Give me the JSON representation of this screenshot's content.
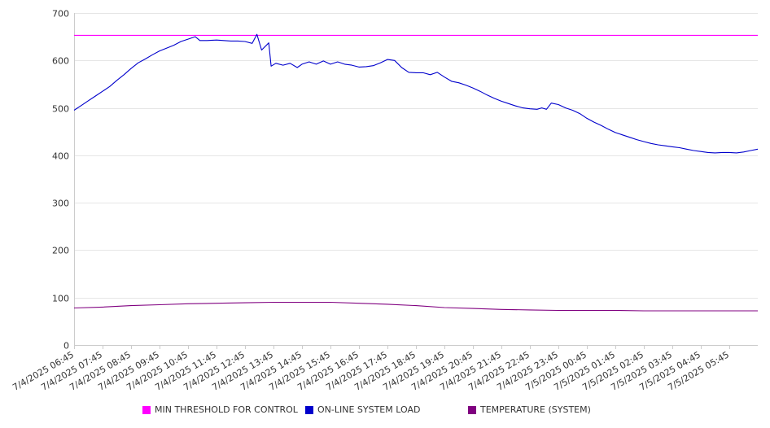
{
  "chart_data": {
    "type": "line",
    "ylim": [
      0,
      700
    ],
    "yticks": [
      0,
      100,
      200,
      300,
      400,
      500,
      600,
      700
    ],
    "grid": true,
    "legend_position": "bottom",
    "x_labels": [
      "7/4/2025 06:45",
      "7/4/2025 07:45",
      "7/4/2025 08:45",
      "7/4/2025 09:45",
      "7/4/2025 10:45",
      "7/4/2025 11:45",
      "7/4/2025 12:45",
      "7/4/2025 13:45",
      "7/4/2025 14:45",
      "7/4/2025 15:45",
      "7/4/2025 16:45",
      "7/4/2025 17:45",
      "7/4/2025 18:45",
      "7/4/2025 19:45",
      "7/4/2025 20:45",
      "7/4/2025 21:45",
      "7/4/2025 22:45",
      "7/4/2025 23:45",
      "7/5/2025 00:45",
      "7/5/2025 01:45",
      "7/5/2025 02:45",
      "7/5/2025 03:45",
      "7/5/2025 04:45",
      "7/5/2025 05:45"
    ],
    "x_time_range": [
      "7/4/2025 06:45",
      "7/5/2025 06:45"
    ],
    "series": [
      {
        "name": "MIN THRESHOLD FOR CONTROL",
        "color": "#ff00ff",
        "points": [
          [
            "7/4/2025 06:45",
            653
          ],
          [
            "7/5/2025 06:45",
            653
          ]
        ]
      },
      {
        "name": "ON-LINE SYSTEM LOAD",
        "color": "#0000cc",
        "points": [
          [
            "7/4/2025 06:45",
            495
          ],
          [
            "7/4/2025 07:00",
            505
          ],
          [
            "7/4/2025 07:15",
            515
          ],
          [
            "7/4/2025 07:30",
            525
          ],
          [
            "7/4/2025 07:45",
            535
          ],
          [
            "7/4/2025 08:00",
            545
          ],
          [
            "7/4/2025 08:15",
            558
          ],
          [
            "7/4/2025 08:30",
            570
          ],
          [
            "7/4/2025 08:45",
            583
          ],
          [
            "7/4/2025 09:00",
            595
          ],
          [
            "7/4/2025 09:15",
            603
          ],
          [
            "7/4/2025 09:30",
            612
          ],
          [
            "7/4/2025 09:45",
            620
          ],
          [
            "7/4/2025 10:00",
            626
          ],
          [
            "7/4/2025 10:15",
            632
          ],
          [
            "7/4/2025 10:30",
            640
          ],
          [
            "7/4/2025 10:45",
            645
          ],
          [
            "7/4/2025 11:00",
            650
          ],
          [
            "7/4/2025 11:10",
            642
          ],
          [
            "7/4/2025 11:25",
            642
          ],
          [
            "7/4/2025 11:45",
            643
          ],
          [
            "7/4/2025 12:00",
            642
          ],
          [
            "7/4/2025 12:15",
            641
          ],
          [
            "7/4/2025 12:30",
            641
          ],
          [
            "7/4/2025 12:45",
            640
          ],
          [
            "7/4/2025 13:00",
            636
          ],
          [
            "7/4/2025 13:10",
            655
          ],
          [
            "7/4/2025 13:20",
            622
          ],
          [
            "7/4/2025 13:35",
            637
          ],
          [
            "7/4/2025 13:40",
            588
          ],
          [
            "7/4/2025 13:50",
            594
          ],
          [
            "7/4/2025 14:05",
            590
          ],
          [
            "7/4/2025 14:20",
            594
          ],
          [
            "7/4/2025 14:35",
            585
          ],
          [
            "7/4/2025 14:45",
            592
          ],
          [
            "7/4/2025 15:00",
            597
          ],
          [
            "7/4/2025 15:15",
            592
          ],
          [
            "7/4/2025 15:30",
            599
          ],
          [
            "7/4/2025 15:45",
            592
          ],
          [
            "7/4/2025 16:00",
            597
          ],
          [
            "7/4/2025 16:15",
            592
          ],
          [
            "7/4/2025 16:30",
            590
          ],
          [
            "7/4/2025 16:45",
            586
          ],
          [
            "7/4/2025 17:00",
            587
          ],
          [
            "7/4/2025 17:15",
            589
          ],
          [
            "7/4/2025 17:30",
            595
          ],
          [
            "7/4/2025 17:45",
            602
          ],
          [
            "7/4/2025 18:00",
            600
          ],
          [
            "7/4/2025 18:15",
            585
          ],
          [
            "7/4/2025 18:30",
            575
          ],
          [
            "7/4/2025 18:45",
            574
          ],
          [
            "7/4/2025 19:00",
            574
          ],
          [
            "7/4/2025 19:15",
            570
          ],
          [
            "7/4/2025 19:30",
            575
          ],
          [
            "7/4/2025 19:45",
            565
          ],
          [
            "7/4/2025 20:00",
            556
          ],
          [
            "7/4/2025 20:15",
            553
          ],
          [
            "7/4/2025 20:30",
            548
          ],
          [
            "7/4/2025 20:45",
            542
          ],
          [
            "7/4/2025 21:00",
            535
          ],
          [
            "7/4/2025 21:15",
            527
          ],
          [
            "7/4/2025 21:30",
            520
          ],
          [
            "7/4/2025 21:45",
            514
          ],
          [
            "7/4/2025 22:00",
            509
          ],
          [
            "7/4/2025 22:15",
            504
          ],
          [
            "7/4/2025 22:30",
            500
          ],
          [
            "7/4/2025 22:45",
            498
          ],
          [
            "7/4/2025 23:00",
            497
          ],
          [
            "7/4/2025 23:10",
            500
          ],
          [
            "7/4/2025 23:20",
            497
          ],
          [
            "7/4/2025 23:30",
            510
          ],
          [
            "7/4/2025 23:45",
            507
          ],
          [
            "7/5/2025 00:00",
            500
          ],
          [
            "7/5/2025 00:15",
            495
          ],
          [
            "7/5/2025 00:30",
            488
          ],
          [
            "7/5/2025 00:45",
            478
          ],
          [
            "7/5/2025 01:00",
            470
          ],
          [
            "7/5/2025 01:15",
            463
          ],
          [
            "7/5/2025 01:30",
            455
          ],
          [
            "7/5/2025 01:45",
            448
          ],
          [
            "7/5/2025 02:00",
            443
          ],
          [
            "7/5/2025 02:15",
            438
          ],
          [
            "7/5/2025 02:30",
            433
          ],
          [
            "7/5/2025 02:45",
            429
          ],
          [
            "7/5/2025 03:00",
            425
          ],
          [
            "7/5/2025 03:15",
            422
          ],
          [
            "7/5/2025 03:30",
            420
          ],
          [
            "7/5/2025 03:45",
            418
          ],
          [
            "7/5/2025 04:00",
            416
          ],
          [
            "7/5/2025 04:15",
            413
          ],
          [
            "7/5/2025 04:30",
            410
          ],
          [
            "7/5/2025 04:45",
            408
          ],
          [
            "7/5/2025 05:00",
            406
          ],
          [
            "7/5/2025 05:15",
            405
          ],
          [
            "7/5/2025 05:30",
            406
          ],
          [
            "7/5/2025 05:45",
            406
          ],
          [
            "7/5/2025 06:00",
            405
          ],
          [
            "7/5/2025 06:15",
            407
          ],
          [
            "7/5/2025 06:30",
            410
          ],
          [
            "7/5/2025 06:45",
            413
          ]
        ]
      },
      {
        "name": "TEMPERATURE (SYSTEM)",
        "color": "#800080",
        "points": [
          [
            "7/4/2025 06:45",
            78
          ],
          [
            "7/4/2025 07:45",
            80
          ],
          [
            "7/4/2025 08:45",
            83
          ],
          [
            "7/4/2025 09:45",
            85
          ],
          [
            "7/4/2025 10:45",
            87
          ],
          [
            "7/4/2025 11:45",
            88
          ],
          [
            "7/4/2025 12:45",
            89
          ],
          [
            "7/4/2025 13:45",
            90
          ],
          [
            "7/4/2025 14:45",
            90
          ],
          [
            "7/4/2025 15:45",
            90
          ],
          [
            "7/4/2025 16:45",
            88
          ],
          [
            "7/4/2025 17:45",
            86
          ],
          [
            "7/4/2025 18:45",
            83
          ],
          [
            "7/4/2025 19:45",
            79
          ],
          [
            "7/4/2025 20:45",
            77
          ],
          [
            "7/4/2025 21:45",
            75
          ],
          [
            "7/4/2025 22:45",
            74
          ],
          [
            "7/4/2025 23:45",
            73
          ],
          [
            "7/5/2025 00:45",
            73
          ],
          [
            "7/5/2025 01:45",
            73
          ],
          [
            "7/5/2025 02:45",
            72
          ],
          [
            "7/5/2025 03:45",
            72
          ],
          [
            "7/5/2025 04:45",
            72
          ],
          [
            "7/5/2025 05:45",
            72
          ],
          [
            "7/5/2025 06:45",
            72
          ]
        ]
      }
    ]
  }
}
